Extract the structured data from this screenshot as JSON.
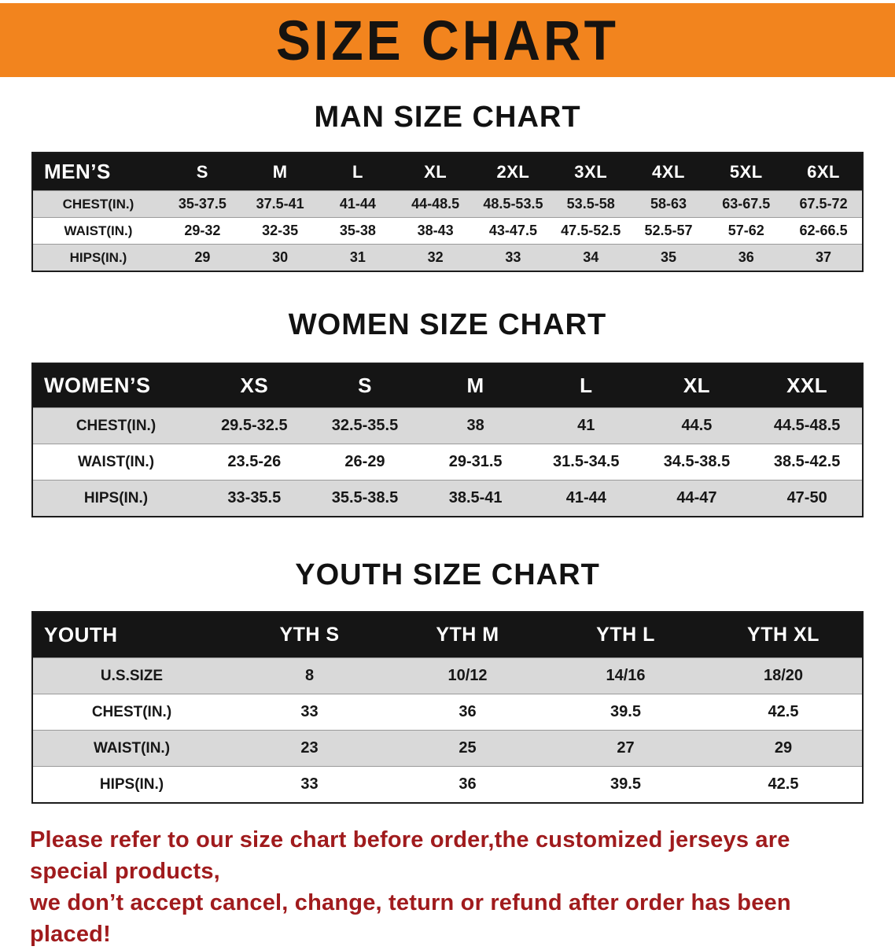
{
  "banner": {
    "title": "SIZE CHART"
  },
  "colors": {
    "banner_bg": "#f2841e",
    "table_header_bg": "#151515",
    "row_alt_gray": "#d9d9d9",
    "footer_text": "#a01b1d"
  },
  "sections": [
    {
      "id": "men",
      "heading": "MAN SIZE CHART",
      "table": {
        "header": [
          "MEN’S",
          "S",
          "M",
          "L",
          "XL",
          "2XL",
          "3XL",
          "4XL",
          "5XL",
          "6XL"
        ],
        "rows": [
          [
            "CHEST(IN.)",
            "35-37.5",
            "37.5-41",
            "41-44",
            "44-48.5",
            "48.5-53.5",
            "53.5-58",
            "58-63",
            "63-67.5",
            "67.5-72"
          ],
          [
            "WAIST(IN.)",
            "29-32",
            "32-35",
            "35-38",
            "38-43",
            "43-47.5",
            "47.5-52.5",
            "52.5-57",
            "57-62",
            "62-66.5"
          ],
          [
            "HIPS(IN.)",
            "29",
            "30",
            "31",
            "32",
            "33",
            "34",
            "35",
            "36",
            "37"
          ]
        ]
      }
    },
    {
      "id": "women",
      "heading": "WOMEN SIZE CHART",
      "table": {
        "header": [
          "WOMEN’S",
          "XS",
          "S",
          "M",
          "L",
          "XL",
          "XXL"
        ],
        "rows": [
          [
            "CHEST(IN.)",
            "29.5-32.5",
            "32.5-35.5",
            "38",
            "41",
            "44.5",
            "44.5-48.5"
          ],
          [
            "WAIST(IN.)",
            "23.5-26",
            "26-29",
            "29-31.5",
            "31.5-34.5",
            "34.5-38.5",
            "38.5-42.5"
          ],
          [
            "HIPS(IN.)",
            "33-35.5",
            "35.5-38.5",
            "38.5-41",
            "41-44",
            "44-47",
            "47-50"
          ]
        ]
      }
    },
    {
      "id": "youth",
      "heading": "YOUTH SIZE CHART",
      "table": {
        "header": [
          "YOUTH",
          "YTH S",
          "YTH M",
          "YTH L",
          "YTH XL"
        ],
        "rows": [
          [
            "U.S.SIZE",
            "8",
            "10/12",
            "14/16",
            "18/20"
          ],
          [
            "CHEST(IN.)",
            "33",
            "36",
            "39.5",
            "42.5"
          ],
          [
            "WAIST(IN.)",
            "23",
            "25",
            "27",
            "29"
          ],
          [
            "HIPS(IN.)",
            "33",
            "36",
            "39.5",
            "42.5"
          ]
        ]
      }
    }
  ],
  "footer": {
    "line1": "Please refer to our size chart before order,the customized jerseys are special products,",
    "line2": "we don’t accept cancel, change, teturn or refund after order has been placed!"
  }
}
